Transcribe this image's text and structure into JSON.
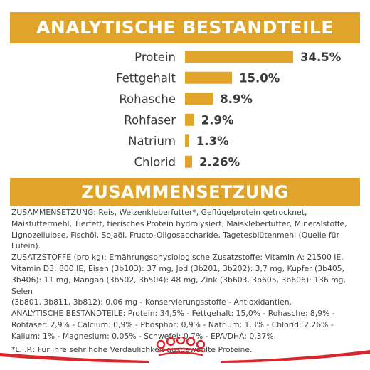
{
  "colors": {
    "accent": "#e0a42a",
    "bar": "#e0a42a",
    "brand_red": "#d9262d",
    "text": "#3a3a3a"
  },
  "header": {
    "title": "ANALYTISCHE BESTANDTEILE"
  },
  "chart_data": {
    "type": "bar",
    "orientation": "horizontal",
    "title": "ANALYTISCHE BESTANDTEILE",
    "categories": [
      "Protein",
      "Fettgehalt",
      "Rohasche",
      "Rohfaser",
      "Natrium",
      "Chlorid"
    ],
    "values": [
      34.5,
      15.0,
      8.9,
      2.9,
      1.3,
      2.26
    ],
    "value_labels": [
      "34.5%",
      "15.0%",
      "8.9%",
      "2.9%",
      "1.3%",
      "2.26%"
    ],
    "unit": "%",
    "xlim": [
      0,
      34.5
    ],
    "grid": false,
    "legend": "none"
  },
  "composition": {
    "title": "ZUSAMMENSETZUNG",
    "lines": [
      "ZUSAMMENSETZUNG: Reis, Weizenkleberfutter*, Geflügelprotein getrocknet,",
      "Maisfuttermehl, Tierfett, tierisches Protein hydrolysiert, Maiskleberfutter, Mineralstoffe,",
      "Lignozellulose, Fischöl, Sojaöl, Fructo-Oligosaccharide, Tagetesblütenmehl (Quelle für Lutein).",
      "ZUSATZSTOFFE (pro kg): Ernährungsphysiologische Zusatzstoffe: Vitamin A: 21500 IE,",
      "Vitamin D3: 800 IE, Eisen (3b103): 37 mg, Jod (3b201, 3b202): 3,7 mg, Kupfer (3b405,",
      "3b406): 11 mg, Mangan (3b502, 3b504): 48 mg, Zink (3b603, 3b605, 3b606): 136 mg, Selen",
      "(3b801, 3b811, 3b812): 0,06 mg - Konservierungsstoffe - Antioxidantien.",
      "ANALYTISCHE BESTANDTEILE: Protein: 34,5% - Fettgehalt: 15,0% - Rohasche: 8,9% -",
      "Rohfaser: 2,9% - Calcium: 0,9% - Phosphor: 0,9% - Natrium: 1,3% - Chlorid: 2,26% -",
      "Kalium: 1% - Magnesium: 0,05% - Schwefel: 0,7% - EPA/DHA: 0,37%."
    ],
    "note": "*L.I.P.: Für ihre sehr hohe Verdaulichkeit ausgewählte Proteine."
  },
  "footer": {
    "logo_icon": "royal-canin-crown-logo-icon"
  }
}
